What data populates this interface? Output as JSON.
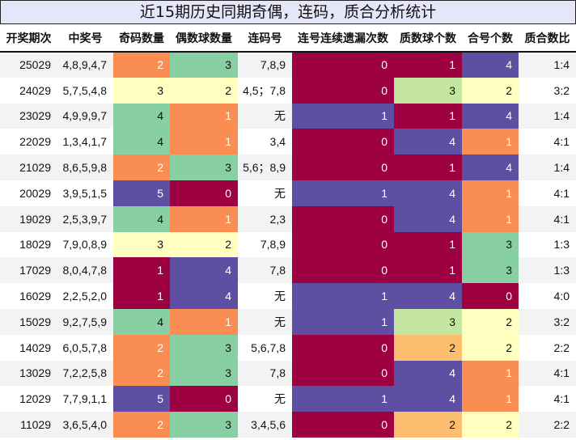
{
  "title": "近15期历史同期奇偶，连码，质合分析统计",
  "headers": [
    "开奖期次",
    "中奖号",
    "奇码数量",
    "偶数球数量",
    "连码号",
    "连号连续遗漏次数",
    "质数球个数",
    "合号个数",
    "质合数比"
  ],
  "palette": {
    "dark_red": "#9e0142",
    "purple": "#5e4fa2",
    "orange": "#fa8e52",
    "green": "#88cfa4",
    "yellow": "#ffffbf",
    "light_green": "#c4e6a0",
    "light_orange": "#fdbe6f",
    "title_bg": "#e6e6fa"
  },
  "rows": [
    {
      "issue": "25029",
      "numbers": "4,8,9,4,7",
      "odd": "2",
      "even": "3",
      "consecutive": "7,8,9",
      "miss": "0",
      "prime": "1",
      "composite": "4",
      "ratio": "1:4"
    },
    {
      "issue": "24029",
      "numbers": "5,7,5,4,8",
      "odd": "3",
      "even": "2",
      "consecutive": "4,5；7,8",
      "miss": "0",
      "prime": "3",
      "composite": "2",
      "ratio": "3:2"
    },
    {
      "issue": "23029",
      "numbers": "4,9,9,9,7",
      "odd": "4",
      "even": "1",
      "consecutive": "无",
      "miss": "1",
      "prime": "1",
      "composite": "4",
      "ratio": "1:4"
    },
    {
      "issue": "22029",
      "numbers": "1,3,4,1,7",
      "odd": "4",
      "even": "1",
      "consecutive": "3,4",
      "miss": "0",
      "prime": "4",
      "composite": "1",
      "ratio": "4:1"
    },
    {
      "issue": "21029",
      "numbers": "8,6,5,9,8",
      "odd": "2",
      "even": "3",
      "consecutive": "5,6；8,9",
      "miss": "0",
      "prime": "1",
      "composite": "4",
      "ratio": "1:4"
    },
    {
      "issue": "20029",
      "numbers": "3,9,5,1,5",
      "odd": "5",
      "even": "0",
      "consecutive": "无",
      "miss": "1",
      "prime": "4",
      "composite": "1",
      "ratio": "4:1"
    },
    {
      "issue": "19029",
      "numbers": "2,5,3,9,7",
      "odd": "4",
      "even": "1",
      "consecutive": "2,3",
      "miss": "0",
      "prime": "4",
      "composite": "1",
      "ratio": "4:1"
    },
    {
      "issue": "18029",
      "numbers": "7,9,0,8,9",
      "odd": "3",
      "even": "2",
      "consecutive": "7,8,9",
      "miss": "0",
      "prime": "1",
      "composite": "3",
      "ratio": "1:3"
    },
    {
      "issue": "17029",
      "numbers": "8,0,4,7,8",
      "odd": "1",
      "even": "4",
      "consecutive": "7,8",
      "miss": "0",
      "prime": "1",
      "composite": "3",
      "ratio": "1:3"
    },
    {
      "issue": "16029",
      "numbers": "2,2,5,2,0",
      "odd": "1",
      "even": "4",
      "consecutive": "无",
      "miss": "1",
      "prime": "4",
      "composite": "0",
      "ratio": "4:0"
    },
    {
      "issue": "15029",
      "numbers": "9,2,7,5,9",
      "odd": "4",
      "even": "1",
      "consecutive": "无",
      "miss": "1",
      "prime": "3",
      "composite": "2",
      "ratio": "3:2"
    },
    {
      "issue": "14029",
      "numbers": "6,0,5,7,8",
      "odd": "2",
      "even": "3",
      "consecutive": "5,6,7,8",
      "miss": "0",
      "prime": "2",
      "composite": "2",
      "ratio": "2:2"
    },
    {
      "issue": "13029",
      "numbers": "7,2,2,5,8",
      "odd": "2",
      "even": "3",
      "consecutive": "7,8",
      "miss": "0",
      "prime": "4",
      "composite": "1",
      "ratio": "4:1"
    },
    {
      "issue": "12029",
      "numbers": "7,7,9,1,1",
      "odd": "5",
      "even": "0",
      "consecutive": "无",
      "miss": "1",
      "prime": "4",
      "composite": "1",
      "ratio": "4:1"
    },
    {
      "issue": "11029",
      "numbers": "3,6,5,4,0",
      "odd": "2",
      "even": "3",
      "consecutive": "3,4,5,6",
      "miss": "0",
      "prime": "2",
      "composite": "2",
      "ratio": "2:2"
    }
  ],
  "cell_colors": [
    {
      "odd": "vo",
      "even": "vg",
      "miss": "v0",
      "prime": "v0",
      "composite": "v1"
    },
    {
      "odd": "vy",
      "even": "vy",
      "miss": "v0",
      "prime": "vlg",
      "composite": "vy"
    },
    {
      "odd": "vg",
      "even": "vo",
      "miss": "v1",
      "prime": "v0",
      "composite": "v1"
    },
    {
      "odd": "vg",
      "even": "vo",
      "miss": "v0",
      "prime": "v1",
      "composite": "vo"
    },
    {
      "odd": "vo",
      "even": "vg",
      "miss": "v0",
      "prime": "v0",
      "composite": "v1"
    },
    {
      "odd": "v1",
      "even": "v0",
      "miss": "v1",
      "prime": "v1",
      "composite": "vo"
    },
    {
      "odd": "vg",
      "even": "vo",
      "miss": "v0",
      "prime": "v1",
      "composite": "vo"
    },
    {
      "odd": "vy",
      "even": "vy",
      "miss": "v0",
      "prime": "v0",
      "composite": "vg"
    },
    {
      "odd": "v0",
      "even": "v1",
      "miss": "v0",
      "prime": "v0",
      "composite": "vg"
    },
    {
      "odd": "v0",
      "even": "v1",
      "miss": "v1",
      "prime": "v1",
      "composite": "v0"
    },
    {
      "odd": "vg",
      "even": "vo",
      "miss": "v1",
      "prime": "vlg",
      "composite": "vy"
    },
    {
      "odd": "vo",
      "even": "vg",
      "miss": "v0",
      "prime": "vlo",
      "composite": "vy"
    },
    {
      "odd": "vo",
      "even": "vg",
      "miss": "v0",
      "prime": "v1",
      "composite": "vo"
    },
    {
      "odd": "v1",
      "even": "v0",
      "miss": "v1",
      "prime": "v1",
      "composite": "vo"
    },
    {
      "odd": "vo",
      "even": "vg",
      "miss": "v0",
      "prime": "vlo",
      "composite": "vy"
    }
  ]
}
